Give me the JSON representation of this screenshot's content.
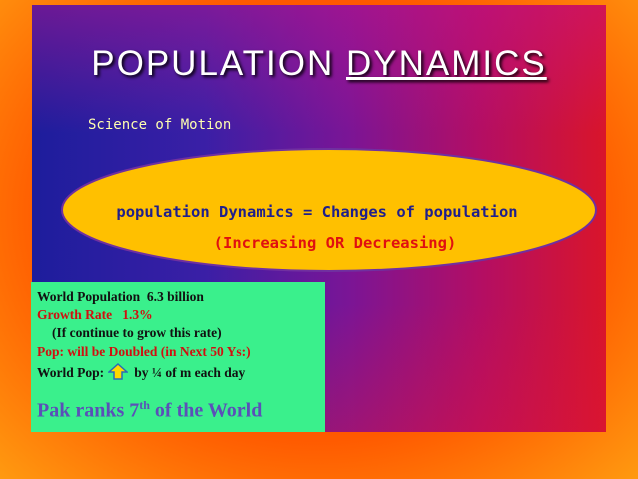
{
  "title": {
    "word1": "POPULATION",
    "word2": "DYNAMICS"
  },
  "subtitle": "Science of Motion",
  "ellipse": {
    "line1": "population Dynamics = Changes of population",
    "line2": "(Increasing OR Decreasing)"
  },
  "box": {
    "lines": [
      "World Population  6.3 billion",
      "Growth Rate   1.3%",
      "(If continue to grow this rate)",
      "Pop: will be Doubled (in Next 50 Ys:)"
    ],
    "pop_prefix": "World Pop:",
    "pop_suffix": "by ¼ of m each day",
    "rank_prefix": "Pak ranks 7",
    "rank_sup": "th",
    "rank_suffix": " of the World"
  }
}
